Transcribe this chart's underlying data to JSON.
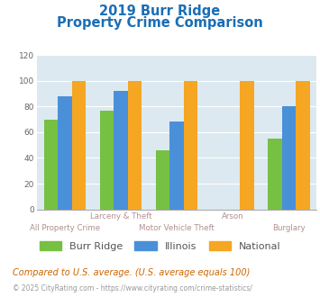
{
  "title_line1": "2019 Burr Ridge",
  "title_line2": "Property Crime Comparison",
  "categories": [
    "All Property Crime",
    "Larceny & Theft",
    "Motor Vehicle Theft",
    "Arson",
    "Burglary"
  ],
  "burr_ridge": [
    70,
    77,
    46,
    0,
    55
  ],
  "illinois": [
    88,
    92,
    68,
    0,
    80
  ],
  "national": [
    100,
    100,
    100,
    100,
    100
  ],
  "arson_index": 3,
  "colors": {
    "burr_ridge": "#76c043",
    "illinois": "#4a90d9",
    "national": "#f5a623"
  },
  "ylim": [
    0,
    120
  ],
  "yticks": [
    0,
    20,
    40,
    60,
    80,
    100,
    120
  ],
  "title_color": "#1a6eb5",
  "label_color": "#b09090",
  "grid_color": "#ffffff",
  "plot_bg": "#dce9f0",
  "fig_bg": "#ffffff",
  "row1_labels": {
    "1": "Larceny & Theft",
    "3": "Arson"
  },
  "row2_labels": {
    "0": "All Property Crime",
    "2": "Motor Vehicle Theft",
    "4": "Burglary"
  },
  "legend_labels": [
    "Burr Ridge",
    "Illinois",
    "National"
  ],
  "footnote1": "Compared to U.S. average. (U.S. average equals 100)",
  "footnote2": "© 2025 CityRating.com - https://www.cityrating.com/crime-statistics/",
  "footnote1_color": "#cc6600",
  "footnote2_color": "#999999",
  "bar_width": 0.25
}
